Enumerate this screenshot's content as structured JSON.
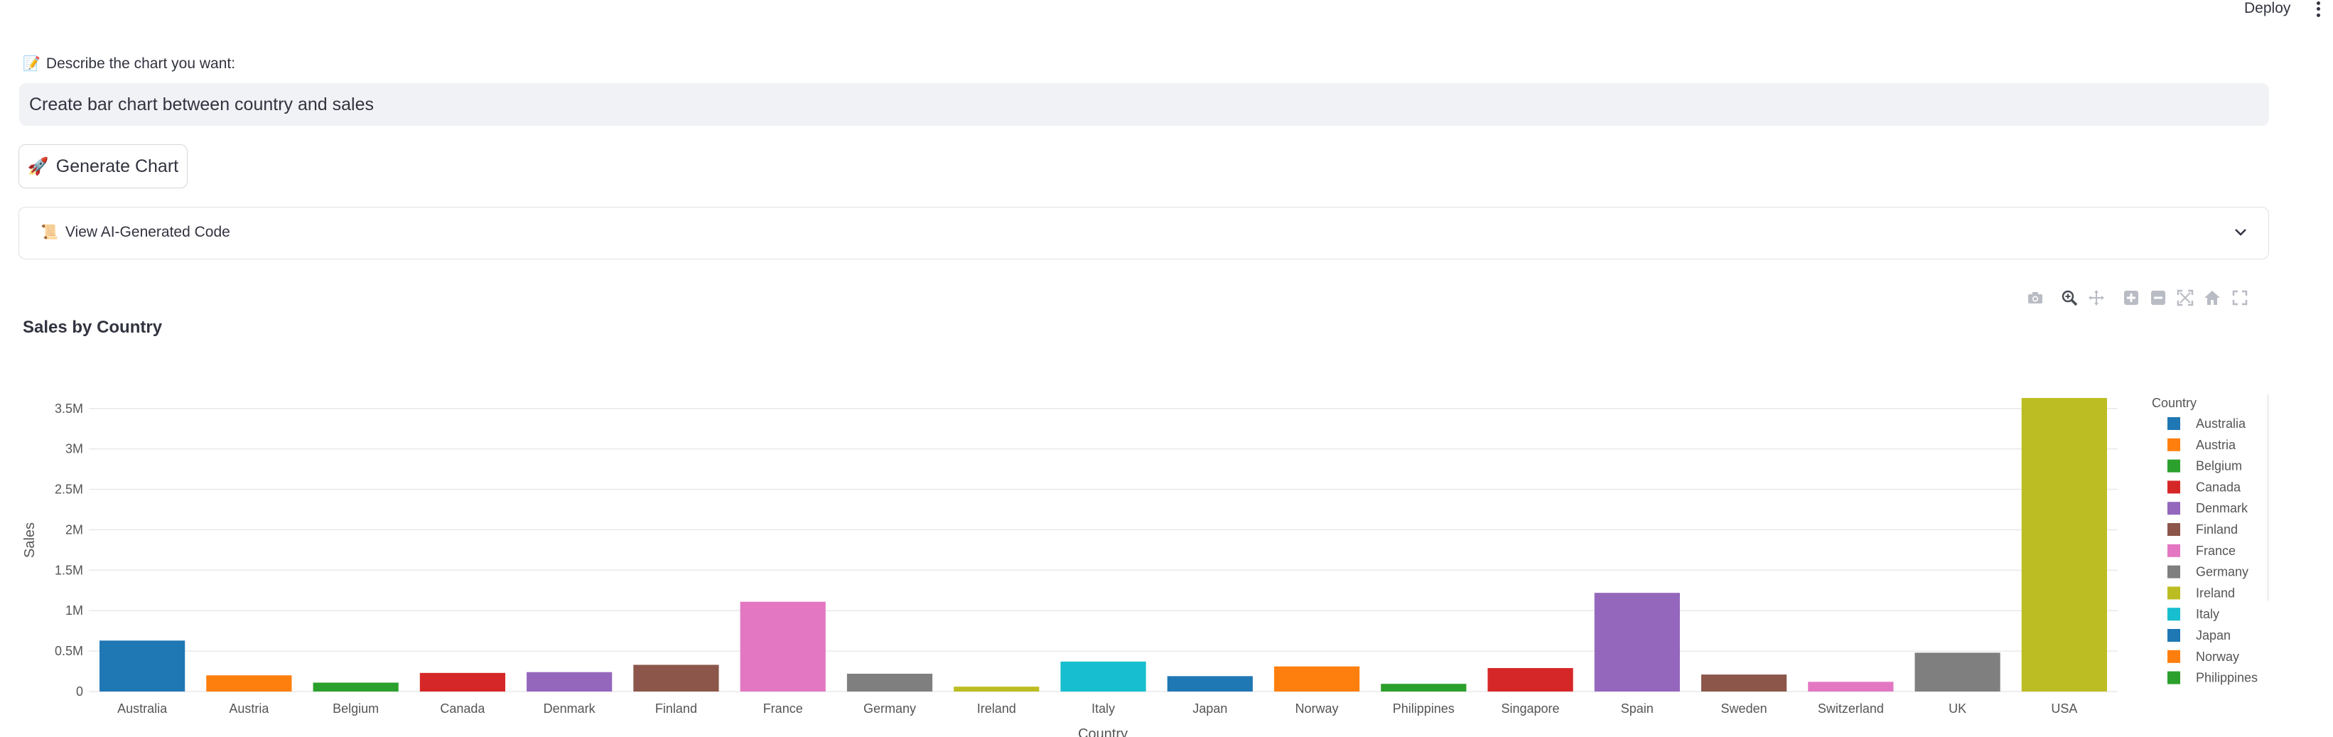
{
  "header": {
    "deploy_label": "Deploy"
  },
  "prompt": {
    "label": "Describe the chart you want:",
    "value": "Create bar chart between country and sales"
  },
  "generate_button": {
    "label": "Generate Chart"
  },
  "expander": {
    "label": "View AI-Generated Code"
  },
  "toolbar": {
    "icons": [
      "camera-icon",
      "zoom-icon",
      "pan-icon",
      "zoom-in-icon",
      "zoom-out-icon",
      "autoscale-icon",
      "home-icon",
      "fullscreen-icon"
    ]
  },
  "colors": {
    "palette": [
      "#1f77b4",
      "#ff7f0e",
      "#2ca02c",
      "#d62728",
      "#9467bd",
      "#8c564b",
      "#e377c2",
      "#7f7f7f",
      "#bcbd22",
      "#17becf"
    ]
  },
  "chart_data": {
    "type": "bar",
    "title": "Sales by Country",
    "xlabel": "Country",
    "ylabel": "Sales",
    "ylim": [
      0,
      3700000
    ],
    "yticks": [
      0,
      500000,
      1000000,
      1500000,
      2000000,
      2500000,
      3000000,
      3500000
    ],
    "ytick_labels": [
      "0",
      "0.5M",
      "1M",
      "1.5M",
      "2M",
      "2.5M",
      "3M",
      "3.5M"
    ],
    "grid": true,
    "legend": {
      "title": "Country",
      "placement": "right",
      "entries": [
        "Australia",
        "Austria",
        "Belgium",
        "Canada",
        "Denmark",
        "Finland",
        "France",
        "Germany",
        "Ireland",
        "Italy",
        "Japan",
        "Norway",
        "Philippines"
      ]
    },
    "categories": [
      "Australia",
      "Austria",
      "Belgium",
      "Canada",
      "Denmark",
      "Finland",
      "France",
      "Germany",
      "Ireland",
      "Italy",
      "Japan",
      "Norway",
      "Philippines",
      "Singapore",
      "Spain",
      "Sweden",
      "Switzerland",
      "UK",
      "USA"
    ],
    "values": [
      630000,
      200000,
      110000,
      230000,
      240000,
      330000,
      1110000,
      220000,
      60000,
      370000,
      190000,
      310000,
      95000,
      290000,
      1220000,
      210000,
      120000,
      480000,
      3630000
    ]
  }
}
